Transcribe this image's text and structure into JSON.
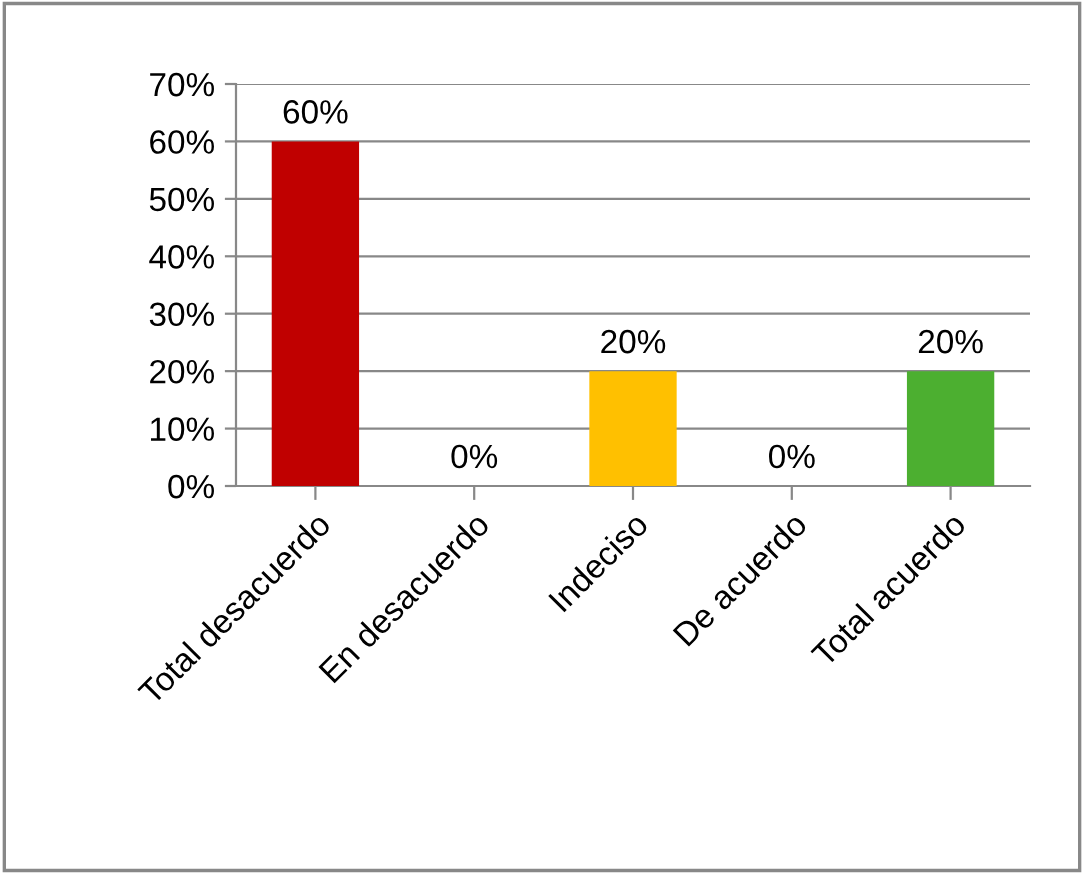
{
  "chart_data": {
    "type": "bar",
    "categories": [
      "Total desacuerdo",
      "En desacuerdo",
      "Indeciso",
      "De acuerdo",
      "Total acuerdo"
    ],
    "values": [
      60,
      0,
      20,
      0,
      20
    ],
    "colors": [
      "#c00000",
      "#4f81bd",
      "#ffc000",
      "#4f81bd",
      "#4caf30"
    ],
    "value_labels": [
      "60%",
      "0%",
      "20%",
      "0%",
      "20%"
    ],
    "ylim": [
      0,
      70
    ],
    "yticks": [
      {
        "value": 0,
        "label": "0%"
      },
      {
        "value": 10,
        "label": "10%"
      },
      {
        "value": 20,
        "label": "20%"
      },
      {
        "value": 30,
        "label": "30%"
      },
      {
        "value": 40,
        "label": "40%"
      },
      {
        "value": 50,
        "label": "50%"
      },
      {
        "value": 60,
        "label": "60%"
      },
      {
        "value": 70,
        "label": "70%"
      }
    ],
    "grid": "y",
    "legend": false
  }
}
